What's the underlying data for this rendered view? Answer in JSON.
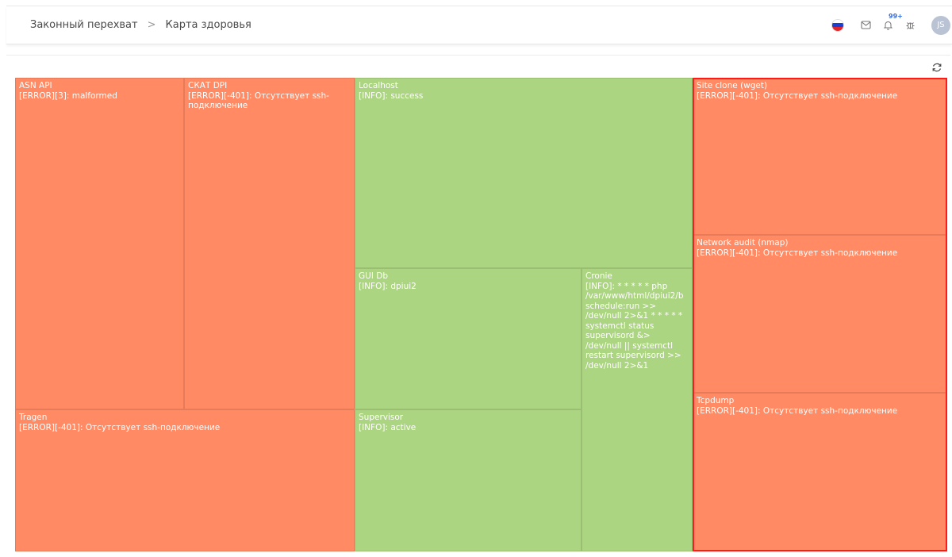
{
  "breadcrumb": {
    "items": [
      "Законный перехват",
      "Карта здоровья"
    ],
    "separator": ">"
  },
  "header": {
    "notifications_badge": "99+",
    "avatar_initials": "JS"
  },
  "colors": {
    "error": "#ff8a63",
    "ok": "#acd581",
    "highlight": "#ff1a1a"
  },
  "treemap": {
    "tiles": [
      {
        "name": "ASN API",
        "message": "[ERROR][3]: malformed",
        "status": "error"
      },
      {
        "name": "СКАТ DPI",
        "message": "[ERROR][-401]: Отсутствует ssh-подключение",
        "status": "error"
      },
      {
        "name": "Tragen",
        "message": "[ERROR][-401]: Отсутствует ssh-подключение",
        "status": "error"
      },
      {
        "name": "Localhost",
        "message": "[INFO]: success",
        "status": "ok"
      },
      {
        "name": "GUI Db",
        "message": "[INFO]: dpiui2",
        "status": "ok"
      },
      {
        "name": "Supervisor",
        "message": "[INFO]: active",
        "status": "ok"
      },
      {
        "name": "Cronie",
        "message": "[INFO]: * * * * * php /var/www/html/dpiui2/b schedule:run >> /dev/null 2>&1 * * * * * systemctl status supervisord &> /dev/null || systemctl restart supervisord >> /dev/null 2>&1",
        "status": "ok"
      },
      {
        "name": "Site clone (wget)",
        "message": "[ERROR][-401]: Отсутствует ssh-подключение",
        "status": "error"
      },
      {
        "name": "Network audit (nmap)",
        "message": "[ERROR][-401]: Отсутствует ssh-подключение",
        "status": "error"
      },
      {
        "name": "Tcpdump",
        "message": "[ERROR][-401]: Отсутствует ssh-подключение",
        "status": "error"
      }
    ]
  }
}
